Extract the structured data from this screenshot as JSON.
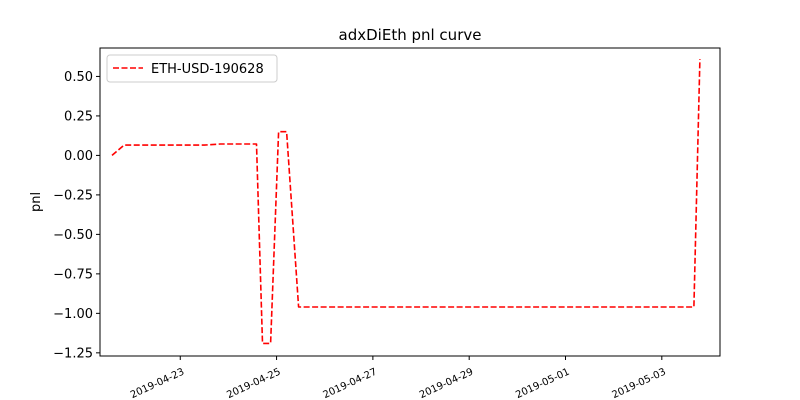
{
  "chart_data": {
    "type": "line",
    "title": "adxDiEth pnl curve",
    "xlabel": "",
    "ylabel": "pnl",
    "grid": false,
    "legend_position": "top-left",
    "xlim": [
      "2019-04-21 08:00",
      "2019-05-04 05:00"
    ],
    "ylim": [
      -1.27,
      0.68
    ],
    "x_ticks": [
      "2019-04-23",
      "2019-04-25",
      "2019-04-27",
      "2019-04-29",
      "2019-05-01",
      "2019-05-03"
    ],
    "y_ticks": [
      -1.25,
      -1.0,
      -0.75,
      -0.5,
      -0.25,
      0.0,
      0.25,
      0.5
    ],
    "y_tick_labels": [
      "−1.25",
      "−1.00",
      "−0.75",
      "−0.50",
      "−0.25",
      "0.00",
      "0.25",
      "0.50"
    ],
    "series": [
      {
        "name": "ETH-USD-190628",
        "color": "#ff0000",
        "style": "dashed",
        "x": [
          "2019-04-21 14:00",
          "2019-04-21 20:00",
          "2019-04-23 12:00",
          "2019-04-23 20:00",
          "2019-04-24 14:00",
          "2019-04-24 17:00",
          "2019-04-24 21:00",
          "2019-04-25 01:00",
          "2019-04-25 05:00",
          "2019-04-25 11:00",
          "2019-05-03 16:00",
          "2019-05-03 19:00"
        ],
        "y": [
          0.0,
          0.065,
          0.065,
          0.072,
          0.072,
          -1.19,
          -1.19,
          0.15,
          0.15,
          -0.96,
          -0.96,
          0.61
        ]
      }
    ]
  }
}
